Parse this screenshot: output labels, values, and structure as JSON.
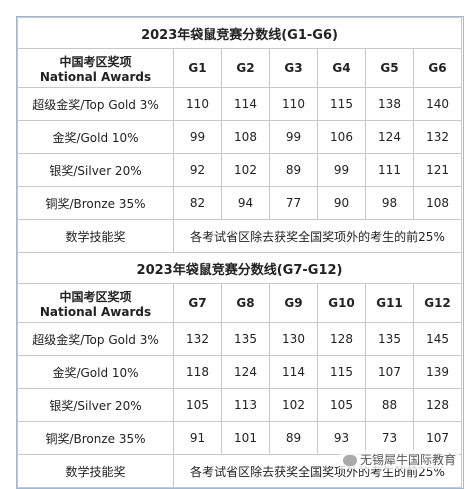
{
  "tables": [
    {
      "title": "2023年袋鼠竞赛分数线(G1-G6)",
      "header": {
        "award_cn": "中国考区奖项",
        "award_en": "National Awards",
        "grades": [
          "G1",
          "G2",
          "G3",
          "G4",
          "G5",
          "G6"
        ]
      },
      "rows": [
        [
          "超级金奖/Top Gold 3%",
          110,
          114,
          110,
          115,
          138,
          140
        ],
        [
          "金奖/Gold 10%",
          99,
          108,
          99,
          106,
          124,
          132
        ],
        [
          "银奖/Silver 20%",
          92,
          102,
          89,
          99,
          111,
          121
        ],
        [
          "铜奖/Bronze 35%",
          82,
          94,
          77,
          90,
          98,
          108
        ]
      ],
      "math_skill": {
        "label": "数学技能奖",
        "text": "各考试省区除去获奖全国奖项外的考生的前25%"
      }
    },
    {
      "title": "2023年袋鼠竞赛分数线(G7-G12)",
      "header": {
        "award_cn": "中国考区奖项",
        "award_en": "National Awards",
        "grades": [
          "G7",
          "G8",
          "G9",
          "G10",
          "G11",
          "G12"
        ]
      },
      "rows": [
        [
          "超级金奖/Top Gold 3%",
          132,
          135,
          130,
          128,
          135,
          145
        ],
        [
          "金奖/Gold 10%",
          118,
          124,
          114,
          115,
          107,
          139
        ],
        [
          "银奖/Silver 20%",
          105,
          113,
          102,
          105,
          88,
          128
        ],
        [
          "铜奖/Bronze 35%",
          91,
          101,
          89,
          93,
          73,
          107
        ]
      ],
      "math_skill": {
        "label": "数学技能奖",
        "text": "各考试省区除去获奖全国奖项外的考生的前25%"
      }
    }
  ],
  "watermark": "无锡犀牛国际教育"
}
